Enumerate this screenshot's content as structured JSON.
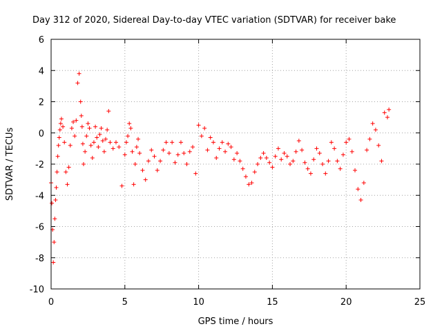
{
  "chart_data": {
    "type": "scatter",
    "title": "Day 312 of 2020, Sidereal Day-to-day VTEC variation (SDTVAR) for receiver bake",
    "xlabel": "GPS time / hours",
    "ylabel": "SDTVAR / TECUs",
    "xlim": [
      0,
      25
    ],
    "ylim": [
      -10,
      6
    ],
    "x_ticks": [
      0,
      5,
      10,
      15,
      20,
      25
    ],
    "x_tick_labels": [
      "0",
      "5",
      "10",
      "15",
      "20",
      "25"
    ],
    "y_ticks": [
      -10,
      -8,
      -6,
      -4,
      -2,
      0,
      2,
      4,
      6
    ],
    "y_tick_labels": [
      "-10",
      "-8",
      "-6",
      "-4",
      "-2",
      "0",
      "2",
      "4",
      "6"
    ],
    "grid": true,
    "marker": "plus",
    "color": "#ff0000",
    "series": [
      {
        "name": "SDTVAR",
        "x": [
          0.0,
          0.05,
          0.1,
          0.15,
          0.2,
          0.25,
          0.3,
          0.35,
          0.4,
          0.45,
          0.5,
          0.55,
          0.6,
          0.65,
          0.7,
          0.8,
          0.9,
          1.0,
          1.1,
          1.2,
          1.3,
          1.4,
          1.5,
          1.6,
          1.7,
          1.8,
          1.9,
          2.0,
          2.05,
          2.1,
          2.15,
          2.2,
          2.3,
          2.4,
          2.5,
          2.6,
          2.7,
          2.8,
          2.9,
          3.0,
          3.1,
          3.2,
          3.3,
          3.4,
          3.5,
          3.6,
          3.7,
          3.8,
          3.9,
          4.0,
          4.2,
          4.4,
          4.6,
          4.8,
          5.0,
          5.1,
          5.2,
          5.3,
          5.4,
          5.5,
          5.6,
          5.7,
          5.8,
          5.9,
          6.0,
          6.2,
          6.4,
          6.6,
          6.8,
          7.0,
          7.2,
          7.4,
          7.6,
          7.8,
          8.0,
          8.2,
          8.4,
          8.6,
          8.8,
          9.0,
          9.2,
          9.4,
          9.6,
          9.8,
          10.0,
          10.2,
          10.4,
          10.6,
          10.8,
          11.0,
          11.2,
          11.4,
          11.6,
          11.8,
          12.0,
          12.2,
          12.4,
          12.6,
          12.8,
          13.0,
          13.2,
          13.4,
          13.6,
          13.8,
          14.0,
          14.2,
          14.4,
          14.6,
          14.8,
          15.0,
          15.2,
          15.4,
          15.6,
          15.8,
          16.0,
          16.2,
          16.4,
          16.6,
          16.8,
          17.0,
          17.2,
          17.4,
          17.6,
          17.8,
          18.0,
          18.2,
          18.4,
          18.6,
          18.8,
          19.0,
          19.2,
          19.4,
          19.6,
          19.8,
          20.0,
          20.2,
          20.4,
          20.6,
          20.8,
          21.0,
          21.2,
          21.4,
          21.6,
          21.8,
          22.0,
          22.2,
          22.4,
          22.6,
          22.8,
          22.9
        ],
        "y": [
          -3.2,
          -4.5,
          -6.2,
          -8.3,
          -7.0,
          -5.5,
          -4.3,
          -3.5,
          -2.5,
          -1.5,
          -0.8,
          -0.3,
          0.2,
          0.6,
          0.9,
          0.4,
          -0.6,
          -2.5,
          -3.3,
          -2.2,
          -0.8,
          0.3,
          0.7,
          -0.2,
          0.8,
          3.2,
          3.8,
          2.0,
          1.1,
          0.4,
          -0.7,
          -2.0,
          -1.2,
          -0.2,
          0.6,
          0.3,
          -0.8,
          -1.6,
          -0.6,
          0.4,
          -0.3,
          -0.9,
          -0.1,
          0.3,
          -0.5,
          -1.2,
          -0.4,
          0.2,
          1.4,
          -0.6,
          -1.0,
          -0.6,
          -0.9,
          -3.4,
          -1.4,
          -0.6,
          -0.2,
          0.6,
          0.3,
          -1.2,
          -3.3,
          -2.0,
          -0.9,
          -0.4,
          -1.3,
          -2.4,
          -3.0,
          -1.8,
          -1.1,
          -1.5,
          -2.4,
          -1.8,
          -1.1,
          -0.6,
          -1.3,
          -0.6,
          -1.9,
          -1.4,
          -0.6,
          -1.3,
          -2.0,
          -1.2,
          -0.9,
          -2.6,
          0.5,
          -0.2,
          0.3,
          -1.1,
          -0.3,
          -0.6,
          -1.6,
          -1.0,
          -0.6,
          -1.2,
          -0.7,
          -0.9,
          -1.7,
          -1.3,
          -1.8,
          -2.3,
          -2.8,
          -3.3,
          -3.2,
          -2.5,
          -2.0,
          -1.6,
          -1.3,
          -1.6,
          -1.9,
          -2.2,
          -1.5,
          -1.0,
          -1.7,
          -1.3,
          -1.5,
          -2.0,
          -1.8,
          -1.2,
          -0.5,
          -1.1,
          -1.9,
          -2.3,
          -2.6,
          -1.7,
          -1.0,
          -1.3,
          -2.0,
          -2.6,
          -1.8,
          -0.6,
          -1.0,
          -1.8,
          -2.3,
          -1.4,
          -0.6,
          -0.4,
          -1.2,
          -2.4,
          -3.6,
          -4.3,
          -3.2,
          -1.1,
          -0.4,
          0.6,
          0.2,
          -0.8,
          -1.8,
          1.3,
          1.0,
          1.5
        ]
      }
    ]
  }
}
